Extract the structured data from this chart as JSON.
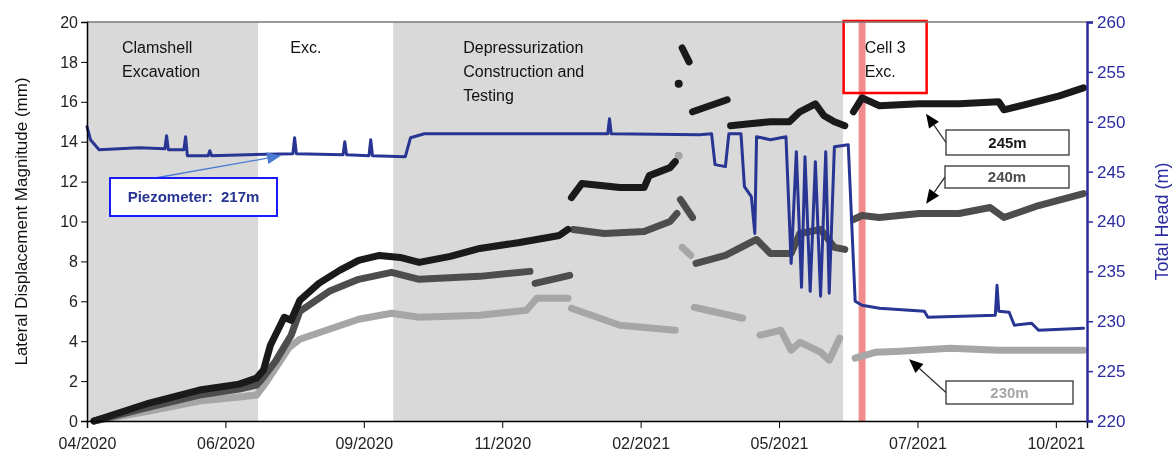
{
  "chart_data": {
    "type": "line",
    "ylabel": "Lateral Displacement Magnitude (mm)",
    "y2label": "Total Head (m)",
    "xlim": [
      "2020-04-01",
      "2021-10-31"
    ],
    "xticks": [
      {
        "value": "2020-04-01",
        "label": "04/2020"
      },
      {
        "value": "2020-06-20",
        "label": "06/2020"
      },
      {
        "value": "2020-09-08",
        "label": "09/2020"
      },
      {
        "value": "2020-11-27",
        "label": "11/2020"
      },
      {
        "value": "2021-02-15",
        "label": "02/2021"
      },
      {
        "value": "2021-05-06",
        "label": "05/2021"
      },
      {
        "value": "2021-07-25",
        "label": "07/2021"
      },
      {
        "value": "2021-10-13",
        "label": "10/2021"
      }
    ],
    "ylim": [
      0,
      20
    ],
    "yticks": [
      0,
      2,
      4,
      6,
      8,
      10,
      12,
      14,
      16,
      18,
      20
    ],
    "y2lim": [
      220,
      260
    ],
    "y2ticks": [
      220,
      225,
      230,
      235,
      240,
      245,
      250,
      255,
      260
    ],
    "line_style": "solid",
    "bands": [
      {
        "axis": "x",
        "from": "2020-04-01",
        "to": "2020-07-09",
        "label": "Clamshell Excavation",
        "color": "#d9d9d9"
      },
      {
        "axis": "x",
        "from": "2020-07-09",
        "to": "2020-09-25",
        "label": "Exc.",
        "color": "#ffffff"
      },
      {
        "axis": "x",
        "from": "2020-09-25",
        "to": "2021-06-12",
        "label": "Depressurization Construction and Testing",
        "color": "#d9d9d9"
      },
      {
        "axis": "x",
        "from": "2021-06-21",
        "to": "2021-06-25",
        "label": "Cell 3 Exc.",
        "color": "#f08080"
      }
    ],
    "series": [
      {
        "name": "230m",
        "color": "#a6a6a6",
        "x": [
          "2020-04-05",
          "2020-05-07",
          "2020-06-05",
          "2020-06-28",
          "2020-07-08",
          "2020-07-14",
          "2020-07-27",
          "2020-08-02",
          "2020-08-19",
          "2020-09-05",
          "2020-09-24",
          "2020-10-10",
          "2020-11-14",
          "2020-12-11",
          "2020-12-17",
          "2021-01-04",
          "2021-01-05",
          "2021-01-06",
          "2021-02-03",
          "2021-03-07",
          "2021-03-08",
          "2021-03-09",
          "2021-03-10",
          "2021-03-11",
          "2021-03-16",
          "2021-03-17",
          "2021-03-18",
          "2021-04-15",
          "2021-04-17",
          "2021-04-25",
          "2021-05-07",
          "2021-05-13",
          "2021-05-18",
          "2021-05-30",
          "2021-06-04",
          "2021-06-10",
          "2021-06-13",
          "2021-06-19",
          "2021-07-01",
          "2021-07-15",
          "2021-08-13",
          "2021-09-10",
          "2021-10-29"
        ],
        "values": [
          0.0,
          0.5,
          1.0,
          1.2,
          1.3,
          2.0,
          3.7,
          4.1,
          4.6,
          5.1,
          5.4,
          5.2,
          5.3,
          5.55,
          6.15,
          6.15,
          null,
          5.65,
          4.8,
          4.55,
          null,
          13.3,
          null,
          8.7,
          8.3,
          null,
          5.7,
          5.15,
          null,
          4.3,
          4.55,
          3.55,
          3.95,
          3.45,
          3.05,
          4.15,
          null,
          3.15,
          3.45,
          3.5,
          3.65,
          3.55,
          3.55
        ]
      },
      {
        "name": "240m",
        "color": "#4d4d4d",
        "x": [
          "2020-04-05",
          "2020-05-07",
          "2020-06-05",
          "2020-06-28",
          "2020-07-08",
          "2020-07-12",
          "2020-07-19",
          "2020-07-28",
          "2020-08-02",
          "2020-08-19",
          "2020-09-05",
          "2020-09-24",
          "2020-10-10",
          "2020-11-14",
          "2020-12-13",
          "2020-12-15",
          "2020-12-16",
          "2021-01-05",
          "2021-01-06",
          "2021-01-07",
          "2021-01-25",
          "2021-02-17",
          "2021-03-04",
          "2021-03-08",
          "2021-03-09",
          "2021-03-10",
          "2021-03-17",
          "2021-03-18",
          "2021-03-19",
          "2021-04-05",
          "2021-04-23",
          "2021-05-01",
          "2021-05-13",
          "2021-05-18",
          "2021-05-30",
          "2021-06-07",
          "2021-06-13",
          "2021-06-15",
          "2021-06-18",
          "2021-06-23",
          "2021-07-03",
          "2021-07-26",
          "2021-08-18",
          "2021-09-05",
          "2021-09-13",
          "2021-10-03",
          "2021-10-29"
        ],
        "values": [
          0.0,
          0.7,
          1.3,
          1.6,
          1.8,
          2.2,
          3.0,
          4.3,
          5.5,
          6.5,
          7.1,
          7.45,
          7.1,
          7.25,
          7.5,
          null,
          6.9,
          7.3,
          null,
          9.6,
          9.4,
          9.5,
          10.0,
          10.4,
          null,
          11.1,
          10.2,
          null,
          7.9,
          8.3,
          9.1,
          8.4,
          8.4,
          9.4,
          9.6,
          8.7,
          8.6,
          null,
          10.1,
          10.3,
          10.2,
          10.4,
          10.4,
          10.7,
          10.2,
          10.8,
          11.4
        ]
      },
      {
        "name": "245m",
        "color": "#1a1a1a",
        "x": [
          "2020-04-05",
          "2020-05-07",
          "2020-06-05",
          "2020-06-28",
          "2020-07-08",
          "2020-07-12",
          "2020-07-16",
          "2020-07-24",
          "2020-07-28",
          "2020-08-02",
          "2020-08-13",
          "2020-08-25",
          "2020-09-05",
          "2020-09-17",
          "2020-09-29",
          "2020-10-10",
          "2020-10-28",
          "2020-11-14",
          "2020-12-07",
          "2020-12-30",
          "2021-01-04",
          "2021-01-05",
          "2021-01-06",
          "2021-01-12",
          "2021-02-03",
          "2021-02-17",
          "2021-02-20",
          "2021-03-04",
          "2021-03-07",
          "2021-03-08",
          "2021-03-09",
          "2021-03-10",
          "2021-03-11",
          "2021-03-15",
          "2021-03-16",
          "2021-03-17",
          "2021-03-27",
          "2021-04-06",
          "2021-04-07",
          "2021-04-08",
          "2021-04-19",
          "2021-05-01",
          "2021-05-12",
          "2021-05-18",
          "2021-05-27",
          "2021-06-01",
          "2021-06-07",
          "2021-06-13",
          "2021-06-15",
          "2021-06-18",
          "2021-06-23",
          "2021-07-03",
          "2021-07-26",
          "2021-08-18",
          "2021-09-10",
          "2021-09-13",
          "2021-09-27",
          "2021-10-15",
          "2021-10-29"
        ],
        "values": [
          0.0,
          0.9,
          1.55,
          1.85,
          2.15,
          2.55,
          3.8,
          5.2,
          5.05,
          6.05,
          6.9,
          7.55,
          8.05,
          8.3,
          8.2,
          7.95,
          8.25,
          8.65,
          8.95,
          9.3,
          9.6,
          null,
          11.2,
          11.9,
          11.7,
          11.7,
          12.3,
          12.7,
          13.0,
          null,
          16.9,
          null,
          18.7,
          18.0,
          null,
          15.5,
          15.8,
          16.1,
          null,
          14.8,
          14.9,
          15.0,
          15.0,
          15.5,
          15.9,
          15.3,
          15.0,
          14.8,
          null,
          15.5,
          16.2,
          15.8,
          15.9,
          15.9,
          16.0,
          15.6,
          15.9,
          16.3,
          16.7
        ]
      },
      {
        "name": "Piezometer:  217m",
        "color": "#283593",
        "axis": "y2",
        "x": [
          "2020-04-01",
          "2020-04-03",
          "2020-04-08",
          "2020-05-01",
          "2020-05-16",
          "2020-05-17",
          "2020-05-18",
          "2020-05-27",
          "2020-05-28",
          "2020-05-29",
          "2020-06-10",
          "2020-06-11",
          "2020-06-12",
          "2020-07-29",
          "2020-07-30",
          "2020-07-31",
          "2020-08-27",
          "2020-08-28",
          "2020-08-29",
          "2020-09-11",
          "2020-09-12",
          "2020-09-13",
          "2020-10-02",
          "2020-10-05",
          "2020-10-13",
          "2020-11-26",
          "2021-01-27",
          "2021-01-28",
          "2021-01-29",
          "2021-03-21",
          "2021-03-28",
          "2021-03-30",
          "2021-04-05",
          "2021-04-07",
          "2021-04-14",
          "2021-04-16",
          "2021-04-20",
          "2021-04-22",
          "2021-04-23",
          "2021-05-01",
          "2021-05-10",
          "2021-05-13",
          "2021-05-16",
          "2021-05-19",
          "2021-05-21",
          "2021-05-24",
          "2021-05-27",
          "2021-05-30",
          "2021-06-02",
          "2021-06-04",
          "2021-06-07",
          "2021-06-15",
          "2021-06-19",
          "2021-06-23",
          "2021-07-03",
          "2021-07-29",
          "2021-07-31",
          "2021-09-08",
          "2021-09-09",
          "2021-09-10",
          "2021-09-16",
          "2021-09-19",
          "2021-09-29",
          "2021-10-03",
          "2021-10-29"
        ],
        "values": [
          249.5,
          248.2,
          247.2,
          247.4,
          247.3,
          248.6,
          247.2,
          247.2,
          248.5,
          246.6,
          246.6,
          247.1,
          246.6,
          246.8,
          248.4,
          246.8,
          246.7,
          248.0,
          246.7,
          246.6,
          248.2,
          246.6,
          246.5,
          248.4,
          248.8,
          248.8,
          248.8,
          250.3,
          248.8,
          248.7,
          248.8,
          245.7,
          245.5,
          248.8,
          248.8,
          243.5,
          242.5,
          238.8,
          248.5,
          248.2,
          248.5,
          235.8,
          247.0,
          233.4,
          246.5,
          233.0,
          246.0,
          232.5,
          247.0,
          232.8,
          247.5,
          247.7,
          232.0,
          231.6,
          231.3,
          231.0,
          230.4,
          230.6,
          233.6,
          231.0,
          230.9,
          229.6,
          229.8,
          229.1,
          229.3
        ]
      }
    ]
  }
}
